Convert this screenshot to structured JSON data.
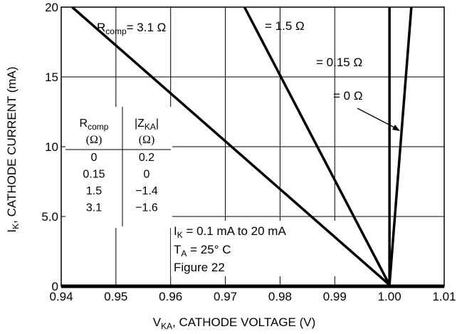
{
  "chart_data": {
    "type": "line",
    "title": "",
    "xlabel": {
      "main": "V",
      "sub": "KA",
      "rest": ", CATHODE VOLTAGE (V)"
    },
    "ylabel": {
      "main": "I",
      "sub": "K",
      "rest": ", CATHODE CURRENT (mA)"
    },
    "xlim": [
      0.94,
      1.01
    ],
    "ylim": [
      0,
      20
    ],
    "x_ticks": [
      0.94,
      0.95,
      0.96,
      0.97,
      0.98,
      0.99,
      1.0,
      1.01
    ],
    "x_tick_labels": [
      "0.94",
      "0.95",
      "0.96",
      "0.97",
      "0.98",
      "0.99",
      "1.00",
      "1.01"
    ],
    "y_ticks": [
      0,
      5,
      10,
      15,
      20
    ],
    "y_tick_labels": [
      "0",
      "5.0",
      "10",
      "15",
      "20"
    ],
    "grid": true,
    "series": [
      {
        "name": "3.1 Ω",
        "x": [
          0.942,
          1.0
        ],
        "y": [
          20,
          0.1
        ]
      },
      {
        "name": "1.5 Ω",
        "x": [
          0.9735,
          1.0
        ],
        "y": [
          20,
          0.1
        ]
      },
      {
        "name": "0.15 Ω",
        "x": [
          1.0,
          1.0
        ],
        "y": [
          20,
          0.1
        ]
      },
      {
        "name": "0 Ω",
        "x": [
          1.0,
          1.004
        ],
        "y": [
          0.1,
          20
        ]
      }
    ],
    "annotations": {
      "rcomp_label": {
        "main": "R",
        "sub": "comp",
        "rest": "= 3.1 Ω"
      },
      "label_15": "= 1.5 Ω",
      "label_015": "= 0.15 Ω",
      "label_0": "= 0 Ω",
      "conditions": {
        "line1": {
          "main": "I",
          "sub": "K",
          "rest": " = 0.1 mA to 20 mA"
        },
        "line2": {
          "main": "T",
          "sub": "A",
          "rest": " = 25° C"
        },
        "line3": "Figure 22"
      }
    },
    "table": {
      "col1_header": {
        "main": "R",
        "sub": "comp",
        "unit": "(Ω)"
      },
      "col2_header": {
        "main": "|Z",
        "sub": "KA",
        "post": "|",
        "unit": "(Ω)"
      },
      "rows": [
        [
          "0",
          "0.2"
        ],
        [
          "0.15",
          "0"
        ],
        [
          "1.5",
          "−1.4"
        ],
        [
          "3.1",
          "−1.6"
        ]
      ]
    }
  }
}
